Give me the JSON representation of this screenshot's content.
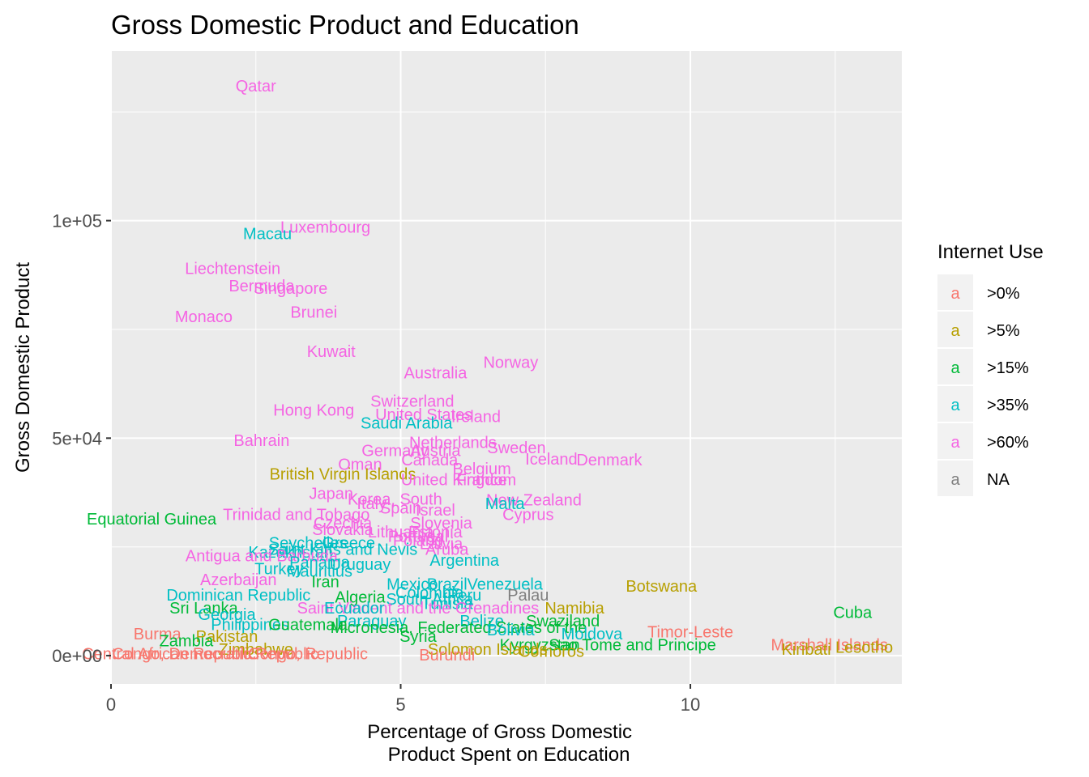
{
  "chart_data": {
    "type": "scatter",
    "title": "Gross Domestic Product and Education",
    "xlabel_lines": [
      "Percentage of Gross Domestic",
      "Product Spent on Education"
    ],
    "ylabel": "Gross Domestic Product",
    "xlim": [
      0,
      13.65
    ],
    "ylim": [
      -6500,
      139000
    ],
    "x_ticks": [
      0,
      5,
      10
    ],
    "x_tick_labels": [
      "0",
      "5",
      "10"
    ],
    "y_ticks": [
      0,
      50000,
      100000
    ],
    "y_tick_labels": [
      "0e+00",
      "5e+04",
      "1e+05"
    ],
    "grid": true,
    "legend_position": "right",
    "legend": {
      "title": "Internet Use",
      "key_glyph": "a",
      "items": [
        {
          "label": ">0%",
          "color": "#F8766D"
        },
        {
          "label": ">5%",
          "color": "#B79F00"
        },
        {
          "label": ">15%",
          "color": "#00BA38"
        },
        {
          "label": ">35%",
          "color": "#00BFC4"
        },
        {
          "label": ">60%",
          "color": "#F564E3"
        },
        {
          "label": "NA",
          "color": "#7F7F7F"
        }
      ]
    },
    "points": [
      {
        "label": "Qatar",
        "x": 2.5,
        "y": 131000,
        "group": ">60%"
      },
      {
        "label": "Luxembourg",
        "x": 3.7,
        "y": 98500,
        "group": ">60%"
      },
      {
        "label": "Macau",
        "x": 2.7,
        "y": 97000,
        "group": ">35%"
      },
      {
        "label": "Liechtenstein",
        "x": 2.1,
        "y": 89000,
        "group": ">60%"
      },
      {
        "label": "Bermuda",
        "x": 2.6,
        "y": 85000,
        "group": ">60%"
      },
      {
        "label": "Singapore",
        "x": 3.1,
        "y": 84500,
        "group": ">60%"
      },
      {
        "label": "Brunei",
        "x": 3.5,
        "y": 79000,
        "group": ">60%"
      },
      {
        "label": "Monaco",
        "x": 1.6,
        "y": 78000,
        "group": ">60%"
      },
      {
        "label": "Kuwait",
        "x": 3.8,
        "y": 70000,
        "group": ">60%"
      },
      {
        "label": "Norway",
        "x": 6.9,
        "y": 67500,
        "group": ">60%"
      },
      {
        "label": "Australia",
        "x": 5.6,
        "y": 65000,
        "group": ">60%"
      },
      {
        "label": "Switzerland",
        "x": 5.2,
        "y": 58500,
        "group": ">60%"
      },
      {
        "label": "Hong Kong",
        "x": 3.5,
        "y": 56500,
        "group": ">60%"
      },
      {
        "label": "United States",
        "x": 5.4,
        "y": 55500,
        "group": ">60%"
      },
      {
        "label": "Ireland",
        "x": 6.3,
        "y": 55000,
        "group": ">60%"
      },
      {
        "label": "Saudi Arabia",
        "x": 5.1,
        "y": 53500,
        "group": ">35%"
      },
      {
        "label": "Bahrain",
        "x": 2.6,
        "y": 49500,
        "group": ">60%"
      },
      {
        "label": "Netherlands",
        "x": 5.9,
        "y": 49000,
        "group": ">60%"
      },
      {
        "label": "Sweden",
        "x": 7.0,
        "y": 47800,
        "group": ">60%"
      },
      {
        "label": "Germany",
        "x": 4.9,
        "y": 47200,
        "group": ">60%"
      },
      {
        "label": "Austria",
        "x": 5.6,
        "y": 47200,
        "group": ">60%"
      },
      {
        "label": "Iceland",
        "x": 7.6,
        "y": 45200,
        "group": ">60%"
      },
      {
        "label": "Denmark",
        "x": 8.6,
        "y": 45000,
        "group": ">60%"
      },
      {
        "label": "Canada",
        "x": 5.5,
        "y": 45000,
        "group": ">60%"
      },
      {
        "label": "Oman",
        "x": 4.3,
        "y": 44000,
        "group": ">60%"
      },
      {
        "label": "Belgium",
        "x": 6.4,
        "y": 43000,
        "group": ">60%"
      },
      {
        "label": "British Virgin Islands",
        "x": 4.0,
        "y": 41800,
        "group": ">5%"
      },
      {
        "label": "United Kingdom",
        "x": 6.0,
        "y": 40500,
        "group": ">60%"
      },
      {
        "label": "France",
        "x": 6.4,
        "y": 40500,
        "group": ">60%"
      },
      {
        "label": "Japan",
        "x": 3.8,
        "y": 37300,
        "group": ">60%"
      },
      {
        "label": "Korea, South",
        "x": 4.9,
        "y": 36000,
        "group": ">60%"
      },
      {
        "label": "New Zealand",
        "x": 7.3,
        "y": 35800,
        "group": ">60%"
      },
      {
        "label": "Malta",
        "x": 6.8,
        "y": 35000,
        "group": ">35%"
      },
      {
        "label": "Italy",
        "x": 4.5,
        "y": 35000,
        "group": ">60%"
      },
      {
        "label": "Spain",
        "x": 5.0,
        "y": 34000,
        "group": ">60%"
      },
      {
        "label": "Israel",
        "x": 5.6,
        "y": 33500,
        "group": ">60%"
      },
      {
        "label": "Cyprus",
        "x": 7.2,
        "y": 32500,
        "group": ">60%"
      },
      {
        "label": "Equatorial Guinea",
        "x": 0.7,
        "y": 31500,
        "group": ">15%"
      },
      {
        "label": "Trinidad and Tobago",
        "x": 3.2,
        "y": 32500,
        "group": ">60%"
      },
      {
        "label": "Slovenia",
        "x": 5.7,
        "y": 30500,
        "group": ">60%"
      },
      {
        "label": "Czechia",
        "x": 4.0,
        "y": 30500,
        "group": ">60%"
      },
      {
        "label": "Slovakia",
        "x": 4.0,
        "y": 29000,
        "group": ">60%"
      },
      {
        "label": "Lithuania",
        "x": 5.0,
        "y": 28500,
        "group": ">60%"
      },
      {
        "label": "Estonia",
        "x": 5.6,
        "y": 28500,
        "group": ">60%"
      },
      {
        "label": "Portugal",
        "x": 5.3,
        "y": 27500,
        "group": ">60%"
      },
      {
        "label": "Poland",
        "x": 5.3,
        "y": 26500,
        "group": ">60%"
      },
      {
        "label": "Seychelles",
        "x": 3.4,
        "y": 26000,
        "group": ">35%"
      },
      {
        "label": "Greece",
        "x": 4.1,
        "y": 26000,
        "group": ">35%"
      },
      {
        "label": "Latvia",
        "x": 5.7,
        "y": 25800,
        "group": ">60%"
      },
      {
        "label": "Saint Kitts and Nevis",
        "x": 4.0,
        "y": 24500,
        "group": ">35%"
      },
      {
        "label": "Aruba",
        "x": 5.8,
        "y": 24500,
        "group": ">60%"
      },
      {
        "label": "Kazakhstan",
        "x": 3.1,
        "y": 23800,
        "group": ">35%"
      },
      {
        "label": "Antigua and Barbuda",
        "x": 2.6,
        "y": 23000,
        "group": ">60%"
      },
      {
        "label": "Argentina",
        "x": 6.1,
        "y": 22000,
        "group": ">35%"
      },
      {
        "label": "Panama",
        "x": 3.6,
        "y": 21500,
        "group": ">35%"
      },
      {
        "label": "Uruguay",
        "x": 4.3,
        "y": 21000,
        "group": ">35%"
      },
      {
        "label": "Turkey",
        "x": 2.9,
        "y": 20000,
        "group": ">35%"
      },
      {
        "label": "Mauritius",
        "x": 3.6,
        "y": 19500,
        "group": ">35%"
      },
      {
        "label": "Azerbaijan",
        "x": 2.2,
        "y": 17500,
        "group": ">60%"
      },
      {
        "label": "Iran",
        "x": 3.7,
        "y": 17000,
        "group": ">15%"
      },
      {
        "label": "Brazil",
        "x": 5.8,
        "y": 16500,
        "group": ">35%"
      },
      {
        "label": "Venezuela",
        "x": 6.8,
        "y": 16500,
        "group": ">35%"
      },
      {
        "label": "Botswana",
        "x": 9.5,
        "y": 16000,
        "group": ">5%"
      },
      {
        "label": "Mexico",
        "x": 5.2,
        "y": 16500,
        "group": ">35%"
      },
      {
        "label": "Colombia",
        "x": 5.5,
        "y": 14500,
        "group": ">35%"
      },
      {
        "label": "Dominican Republic",
        "x": 2.2,
        "y": 14000,
        "group": ">35%"
      },
      {
        "label": "Peru",
        "x": 6.1,
        "y": 14000,
        "group": ">35%"
      },
      {
        "label": "Palau",
        "x": 7.2,
        "y": 14000,
        "group": "NA"
      },
      {
        "label": "Algeria",
        "x": 4.3,
        "y": 13500,
        "group": ">15%"
      },
      {
        "label": "South Africa",
        "x": 5.5,
        "y": 13000,
        "group": ">35%"
      },
      {
        "label": "Tunisia",
        "x": 5.8,
        "y": 12000,
        "group": ">35%"
      },
      {
        "label": "Saint Vincent and the Grenadines",
        "x": 5.3,
        "y": 11000,
        "group": ">60%"
      },
      {
        "label": "Namibia",
        "x": 8.0,
        "y": 11000,
        "group": ">5%"
      },
      {
        "label": "Sri Lanka",
        "x": 1.6,
        "y": 11000,
        "group": ">15%"
      },
      {
        "label": "Ecuador",
        "x": 4.2,
        "y": 11000,
        "group": ">35%"
      },
      {
        "label": "Cuba",
        "x": 12.8,
        "y": 10000,
        "group": ">15%"
      },
      {
        "label": "Georgia",
        "x": 2.0,
        "y": 9500,
        "group": ">35%"
      },
      {
        "label": "Swaziland",
        "x": 7.8,
        "y": 8000,
        "group": ">15%"
      },
      {
        "label": "Belize",
        "x": 6.4,
        "y": 8000,
        "group": ">35%"
      },
      {
        "label": "Paraguay",
        "x": 4.5,
        "y": 8000,
        "group": ">35%"
      },
      {
        "label": "Philippines",
        "x": 2.4,
        "y": 7200,
        "group": ">35%"
      },
      {
        "label": "Guatemala",
        "x": 3.4,
        "y": 7200,
        "group": ">15%"
      },
      {
        "label": "Micronesia, Federated States of the",
        "x": 6.0,
        "y": 6500,
        "group": ">15%"
      },
      {
        "label": "Bolivia",
        "x": 6.9,
        "y": 6000,
        "group": ">35%"
      },
      {
        "label": "Timor-Leste",
        "x": 10.0,
        "y": 5500,
        "group": ">0%"
      },
      {
        "label": "Moldova",
        "x": 8.3,
        "y": 5000,
        "group": ">35%"
      },
      {
        "label": "Burma",
        "x": 0.8,
        "y": 5000,
        "group": ">0%"
      },
      {
        "label": "Pakistan",
        "x": 2.0,
        "y": 4500,
        "group": ">5%"
      },
      {
        "label": "Syria",
        "x": 5.3,
        "y": 4500,
        "group": ">15%"
      },
      {
        "label": "Zambia",
        "x": 1.3,
        "y": 3500,
        "group": ">15%"
      },
      {
        "label": "Sao Tome and Principe",
        "x": 9.0,
        "y": 2500,
        "group": ">15%"
      },
      {
        "label": "Marshall Islands",
        "x": 12.4,
        "y": 2500,
        "group": ">0%"
      },
      {
        "label": "Lesotho",
        "x": 13.0,
        "y": 2000,
        "group": ">5%"
      },
      {
        "label": "Kiribati",
        "x": 12.0,
        "y": 1500,
        "group": ">5%"
      },
      {
        "label": "Kyrgyzstan",
        "x": 7.4,
        "y": 2500,
        "group": ">15%"
      },
      {
        "label": "Comoros",
        "x": 7.6,
        "y": 1000,
        "group": ">5%"
      },
      {
        "label": "Solomon Islands",
        "x": 6.5,
        "y": 1500,
        "group": ">5%"
      },
      {
        "label": "Zimbabwe",
        "x": 2.5,
        "y": 1500,
        "group": ">5%"
      },
      {
        "label": "Central African Republic",
        "x": 1.0,
        "y": 500,
        "group": ">0%"
      },
      {
        "label": "Congo, Democratic Republic",
        "x": 1.8,
        "y": 500,
        "group": ">0%"
      },
      {
        "label": "Congo, Republic",
        "x": 3.4,
        "y": 500,
        "group": ">0%"
      },
      {
        "label": "Burundi",
        "x": 5.8,
        "y": 200,
        "group": ">0%"
      }
    ]
  }
}
